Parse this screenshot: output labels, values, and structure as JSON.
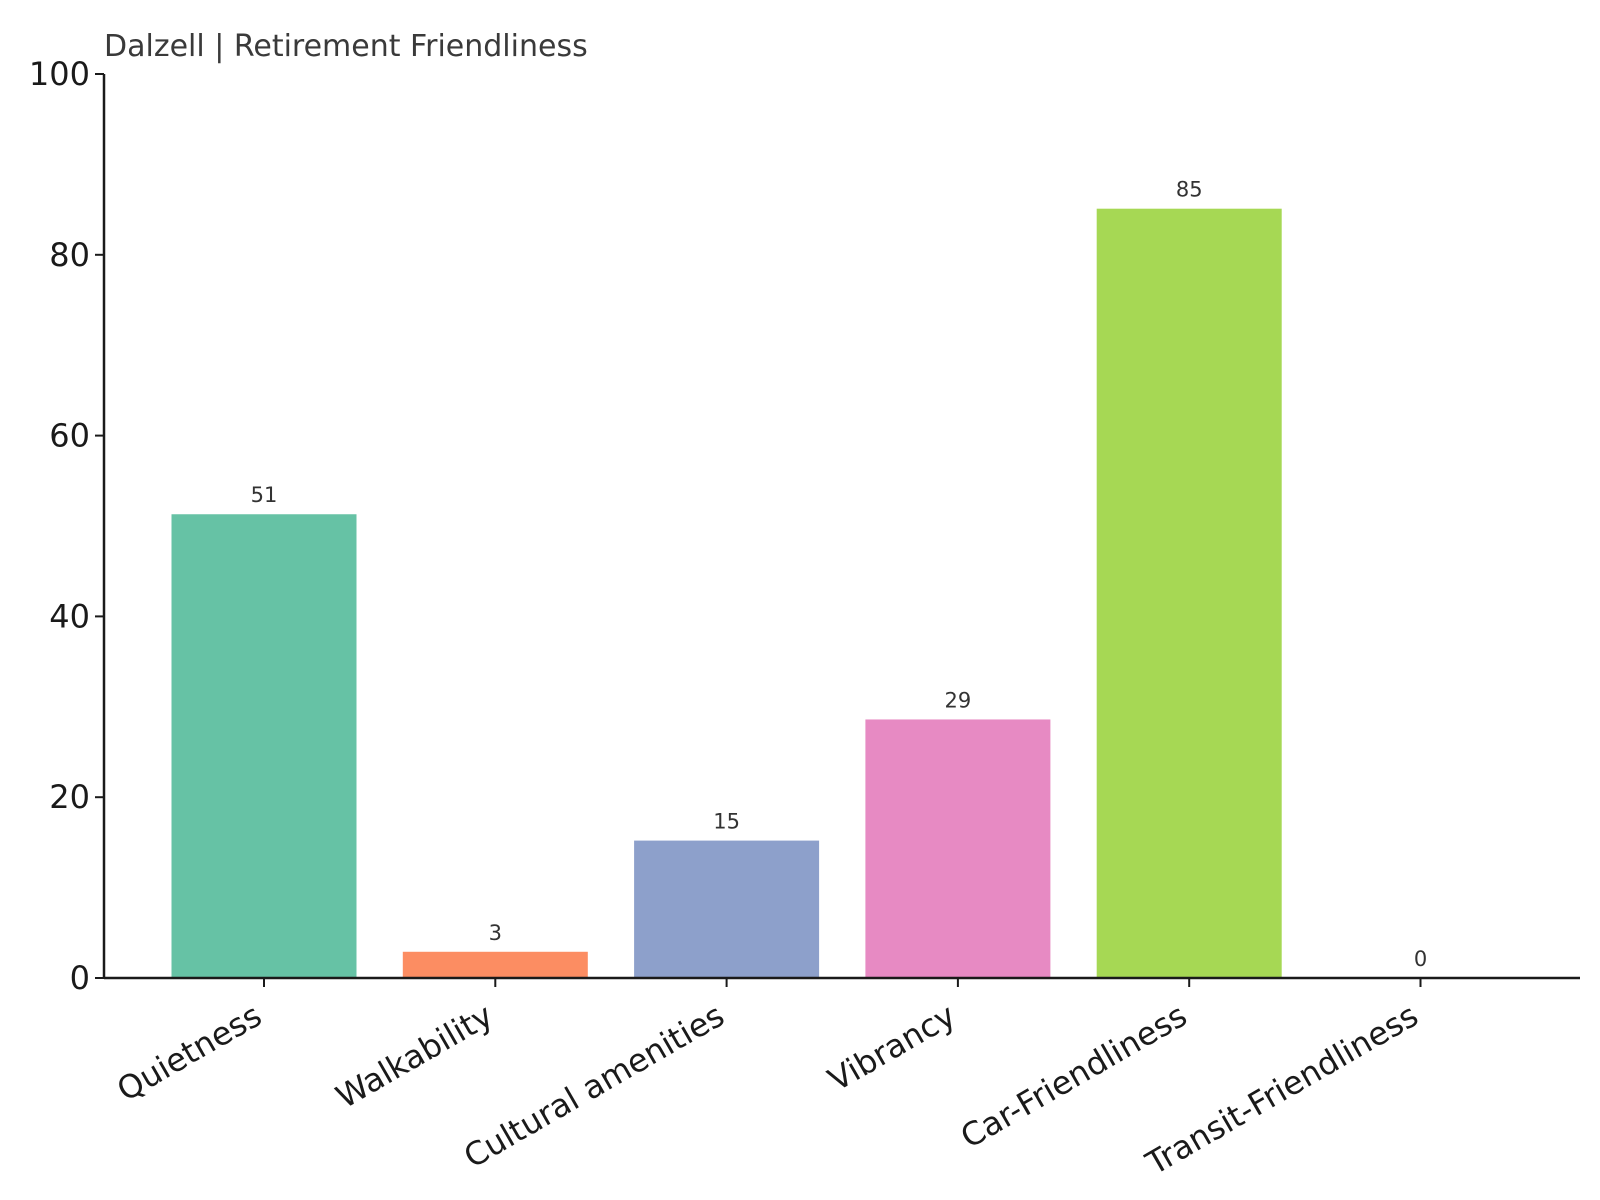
{
  "chart_data": {
    "type": "bar",
    "title": "Dalzell | Retirement Friendliness",
    "xlabel": "",
    "ylabel": "",
    "categories": [
      "Quietness",
      "Walkability",
      "Cultural amenities",
      "Vibrancy",
      "Car-Friendliness",
      "Transit-Friendliness"
    ],
    "values": [
      51.3,
      2.9,
      15.2,
      28.6,
      85.1,
      0
    ],
    "data_labels": [
      "51",
      "3",
      "15",
      "29",
      "85",
      "0"
    ],
    "colors": [
      "#66c2a5",
      "#fc8d62",
      "#8da0cb",
      "#e78ac3",
      "#a6d854",
      "#ffd92f"
    ],
    "ylim": [
      0,
      100
    ],
    "yticks": [
      0,
      20,
      40,
      60,
      80,
      100
    ],
    "grid": false,
    "legend": "none"
  }
}
